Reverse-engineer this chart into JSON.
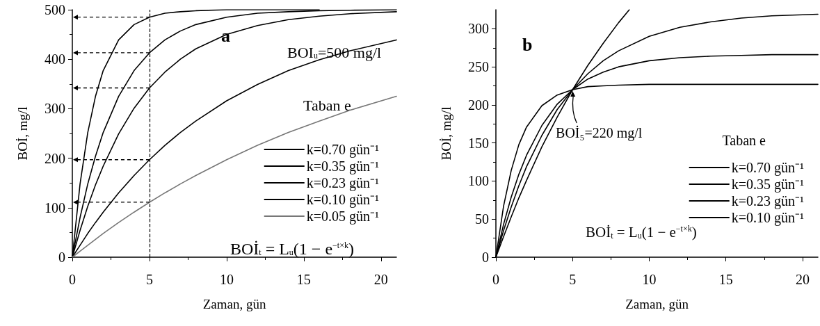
{
  "chart_data": [
    {
      "type": "line",
      "xlabel": "Zaman, gün",
      "ylabel": "BOİ, mg/l",
      "xlim": [
        0,
        21
      ],
      "xticks": [
        0,
        5,
        10,
        15,
        20
      ],
      "ylim": [
        0,
        500
      ],
      "yticks": [
        0,
        100,
        200,
        300,
        400,
        500
      ],
      "grid": false,
      "legend": "bottom right",
      "marker": "none",
      "line_style": "solid",
      "annotations": [
        "a",
        "BOI$_{u}$=500 mg/l",
        "Taban e",
        "BOİ$_{t}$ = L$_{u}$(1 − e$^{−t×k}$)"
      ],
      "ref_lines": [
        {
          "axis": "x",
          "value": 5,
          "color": "#000000",
          "line_style": "dashed"
        }
      ],
      "x": [
        0,
        0.5,
        1,
        1.5,
        2,
        3,
        4,
        5,
        6,
        7,
        8,
        10,
        12,
        14,
        16,
        18,
        21
      ],
      "series": [
        {
          "name": "k=0.70 gün⁻¹",
          "color": "#000000",
          "x": [
            0,
            0.5,
            1,
            1.5,
            2,
            3,
            4,
            5,
            6,
            7,
            8,
            10,
            12,
            14,
            16
          ],
          "values": [
            0,
            148,
            252,
            325,
            377,
            439,
            470,
            485,
            493,
            496,
            498,
            500,
            500,
            500,
            500
          ]
        },
        {
          "name": "k=0.35 gün⁻¹",
          "color": "#000000",
          "values": [
            0,
            80,
            148,
            204,
            252,
            325,
            377,
            413,
            439,
            457,
            470,
            485,
            493,
            496,
            498,
            499,
            500
          ]
        },
        {
          "name": "k=0.23 gün⁻¹",
          "color": "#000000",
          "values": [
            0,
            54,
            103,
            146,
            184,
            249,
            301,
            342,
            374,
            400,
            421,
            450,
            468,
            480,
            487,
            492,
            496
          ]
        },
        {
          "name": "k=0.10 gün⁻¹",
          "color": "#000000",
          "values": [
            0,
            24,
            48,
            70,
            91,
            130,
            165,
            197,
            226,
            252,
            275,
            316,
            349,
            377,
            399,
            417,
            439
          ]
        },
        {
          "name": "k=0.05 gün⁻¹",
          "color": "#777777",
          "values": [
            0,
            12,
            24,
            36,
            48,
            70,
            91,
            111,
            130,
            148,
            165,
            197,
            226,
            252,
            275,
            297,
            325
          ]
        }
      ]
    },
    {
      "type": "line",
      "xlabel": "Zaman, gün",
      "ylabel": "BOİ, mg/l",
      "xlim": [
        0,
        21
      ],
      "xticks": [
        0,
        5,
        10,
        15,
        20
      ],
      "ylim": [
        0,
        325
      ],
      "yticks": [
        0,
        50,
        100,
        150,
        200,
        250,
        300
      ],
      "grid": false,
      "legend": "right",
      "legend_title": "Taban e",
      "marker": "none",
      "line_style": "solid",
      "annotations": [
        "b",
        {
          "text": "BOİ₅=220 mg/l",
          "x": 5,
          "y": 220
        },
        "BOİ$_{t}$ = L$_{u}$(1 − e$^{−t×k}$)"
      ],
      "x": [
        0,
        0.5,
        1,
        1.5,
        2,
        3,
        4,
        5,
        6,
        7,
        8,
        10,
        12,
        14,
        16,
        18,
        21
      ],
      "series": [
        {
          "name": "k=0.70 gün⁻¹",
          "color": "#000000",
          "values": [
            0,
            67,
            114,
            148,
            171,
            199,
            213,
            220,
            224,
            225,
            226,
            227,
            227,
            227,
            227,
            227,
            227
          ]
        },
        {
          "name": "k=0.35 gün⁻¹",
          "color": "#000000",
          "values": [
            0,
            43,
            79,
            109,
            134,
            173,
            201,
            220,
            234,
            243,
            250,
            258,
            262,
            264,
            265,
            266,
            266
          ]
        },
        {
          "name": "k=0.23 gün⁻¹",
          "color": "#000000",
          "values": [
            0,
            35,
            66,
            94,
            119,
            160,
            194,
            220,
            241,
            258,
            271,
            290,
            302,
            309,
            314,
            317,
            319
          ]
        },
        {
          "name": "k=0.10 gün⁻¹",
          "color": "#000000",
          "x": [
            0,
            0.5,
            1,
            1.5,
            2,
            3,
            4,
            5,
            6,
            7,
            8,
            8.7
          ],
          "values": [
            0,
            27,
            53,
            78,
            101,
            145,
            184,
            220,
            252,
            281,
            308,
            325
          ]
        }
      ]
    }
  ]
}
